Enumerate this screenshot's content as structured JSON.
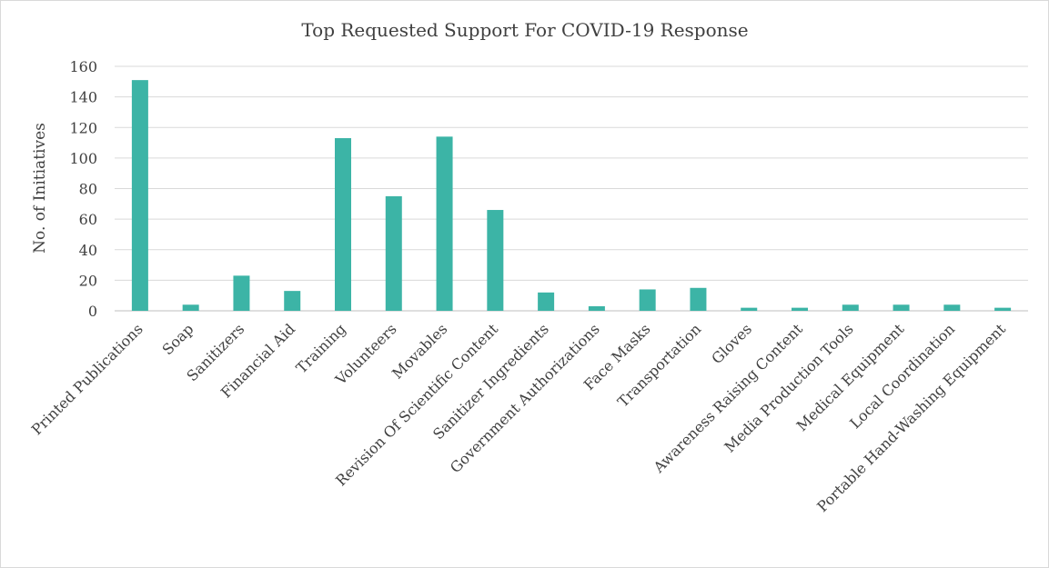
{
  "chart_data": {
    "type": "bar",
    "title": "Top Requested Support For COVID-19 Response",
    "xlabel": "",
    "ylabel": "No. of Initiatives",
    "ylim": [
      0,
      160
    ],
    "yticks": [
      0,
      20,
      40,
      60,
      80,
      100,
      120,
      140,
      160
    ],
    "grid": true,
    "legend": "none",
    "bar_color": "#3cb4a6",
    "categories": [
      "Printed Publications",
      "Soap",
      "Sanitizers",
      "Financial Aid",
      "Training",
      "Volunteers",
      "Movables",
      "Revision Of Scientific Content",
      "Sanitizer Ingredients",
      "Government Authorizations",
      "Face Masks",
      "Transportation",
      "Gloves",
      "Awareness Raising Content",
      "Media Production Tools",
      "Medical Equipment",
      "Local Coordination",
      "Portable Hand-Washing Equipment"
    ],
    "values": [
      151,
      4,
      23,
      13,
      113,
      75,
      114,
      66,
      12,
      3,
      14,
      15,
      2,
      2,
      4,
      4,
      4,
      2
    ]
  }
}
